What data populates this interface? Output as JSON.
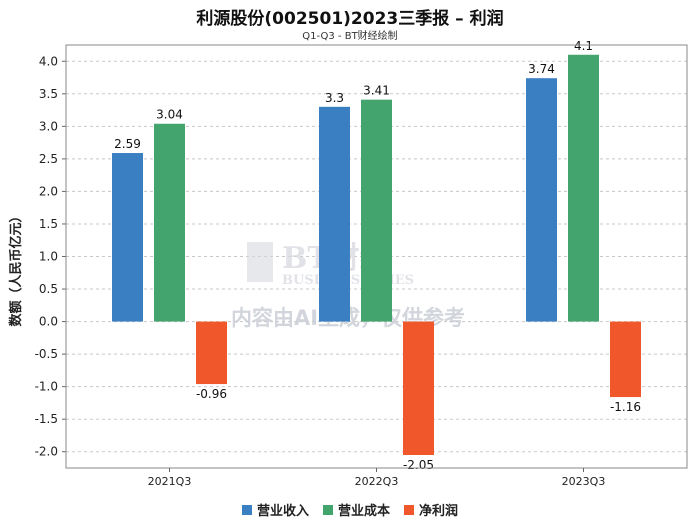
{
  "chart_data": {
    "type": "bar",
    "title": "利源股份(002501)2023三季报 – 利润",
    "subtitle": "Q1-Q3 - BT财经绘制",
    "ylabel": "数额（人民币亿元）",
    "xlabel": "",
    "ylim": [
      -2.25,
      4.25
    ],
    "yticks": [
      "4.0",
      "3.5",
      "3.0",
      "2.5",
      "2.0",
      "1.5",
      "1.0",
      "0.5",
      "0.0",
      "-0.5",
      "-1.0",
      "-1.5",
      "-2.0"
    ],
    "categories": [
      "2021Q3",
      "2022Q3",
      "2023Q3"
    ],
    "series": [
      {
        "name": "营业收入",
        "color": "#3a7fc1",
        "values": [
          2.59,
          3.3,
          3.74
        ],
        "labels": [
          "2.59",
          "3.3",
          "3.74"
        ]
      },
      {
        "name": "营业成本",
        "color": "#44a46e",
        "values": [
          3.04,
          3.41,
          4.1
        ],
        "labels": [
          "3.04",
          "3.41",
          "4.1"
        ]
      },
      {
        "name": "净利润",
        "color": "#f0572a",
        "values": [
          -0.96,
          -2.05,
          -1.16
        ],
        "labels": [
          "-0.96",
          "-2.05",
          "-1.16"
        ]
      }
    ],
    "grid": true,
    "legend_position": "bottom"
  },
  "watermark": {
    "logo_text": "BT财经",
    "logo_sub": "BUSINESS TIMES",
    "notice": "内容由AI生成，仅供参考"
  }
}
